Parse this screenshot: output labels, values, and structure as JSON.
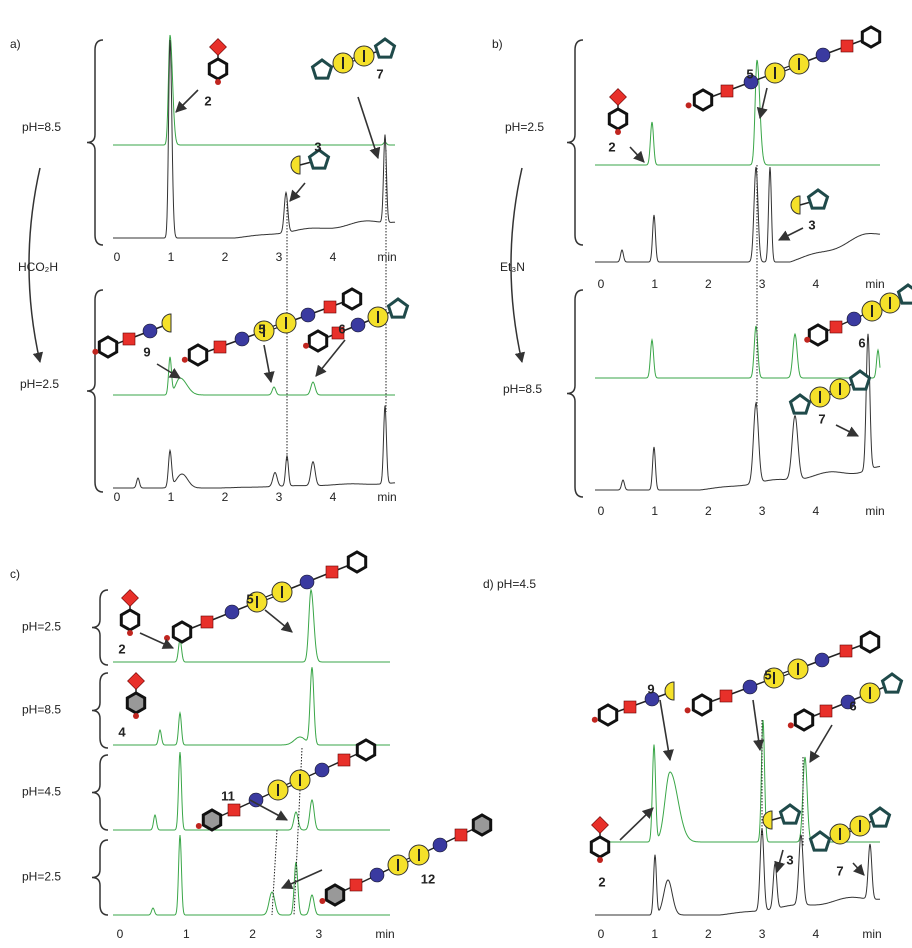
{
  "panels": [
    {
      "label": "a)",
      "conditions": [
        "pH=8.5",
        "pH=2.5"
      ],
      "reagent": "HCO₂H",
      "compounds": [
        "2",
        "7",
        "3",
        "9",
        "5",
        "6"
      ],
      "axes": [
        {
          "ticks": [
            0,
            1,
            2,
            3,
            4
          ],
          "unit": "min"
        },
        {
          "ticks": [
            0,
            1,
            2,
            3,
            4
          ],
          "unit": "min"
        }
      ]
    },
    {
      "label": "b)",
      "conditions": [
        "pH=2.5",
        "pH=8.5"
      ],
      "reagent": "Et₃N",
      "compounds": [
        "2",
        "5",
        "3",
        "6",
        "7"
      ],
      "axes": [
        {
          "ticks": [
            0,
            1,
            2,
            3,
            4
          ],
          "unit": "min"
        },
        {
          "ticks": [
            0,
            1,
            2,
            3,
            4
          ],
          "unit": "min"
        }
      ]
    },
    {
      "label": "c)",
      "conditions": [
        "pH=2.5",
        "pH=8.5",
        "pH=4.5",
        "pH=2.5"
      ],
      "compounds": [
        "2",
        "5",
        "4",
        "11",
        "12"
      ],
      "axes": [
        {
          "ticks": [
            0,
            1,
            2,
            3
          ],
          "unit": "min"
        }
      ]
    },
    {
      "label": "d) pH=4.5",
      "compounds": [
        "9",
        "5",
        "6",
        "3",
        "7",
        "2"
      ],
      "axes": [
        {
          "ticks": [
            0,
            1,
            2,
            3,
            4
          ],
          "unit": "min"
        }
      ]
    }
  ]
}
